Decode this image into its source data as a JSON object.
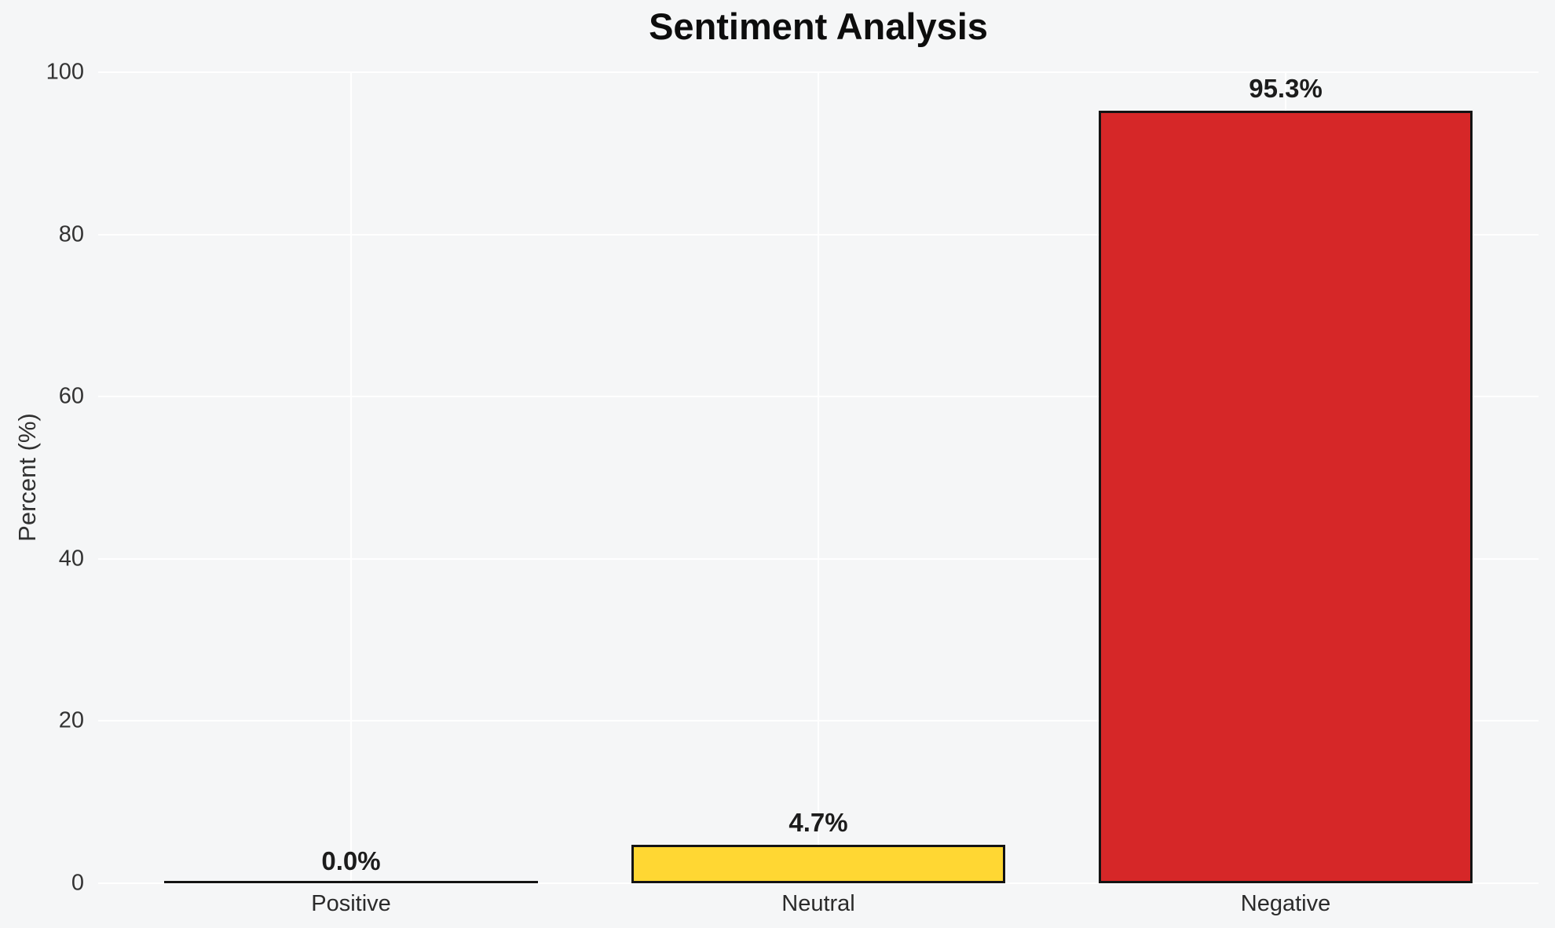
{
  "chart_data": {
    "type": "bar",
    "title": "Sentiment Analysis",
    "xlabel": "",
    "ylabel": "Percent (%)",
    "categories": [
      "Positive",
      "Neutral",
      "Negative"
    ],
    "values": [
      0.0,
      4.7,
      95.3
    ],
    "value_labels": [
      "0.0%",
      "4.7%",
      "95.3%"
    ],
    "bar_colors": [
      "#f5f6f7",
      "#ffd733",
      "#d62728"
    ],
    "bar_edge_color": "#141414",
    "ylim": [
      0,
      100
    ],
    "yticks": [
      0,
      20,
      40,
      60,
      80,
      100
    ],
    "grid": true,
    "legend": "none",
    "background_color": "#f5f6f7",
    "gridline_color": "#ffffff"
  }
}
